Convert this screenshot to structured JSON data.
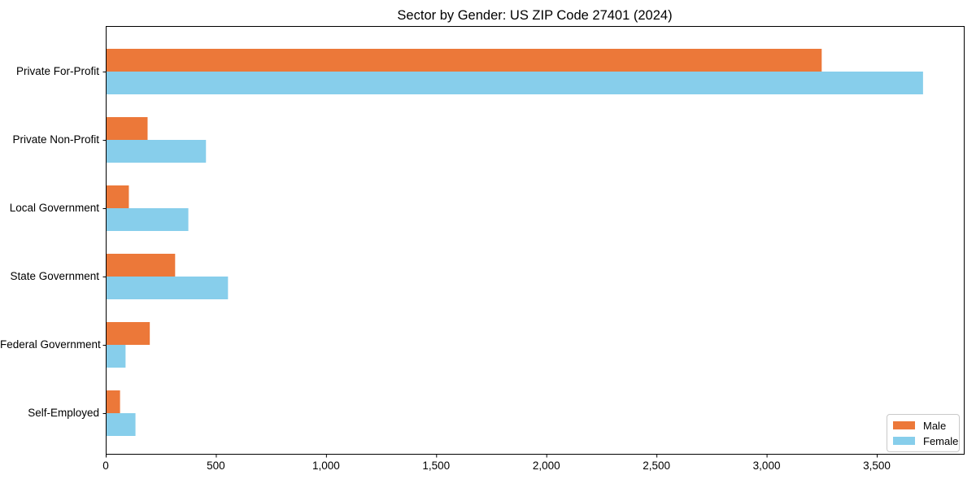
{
  "title": "Sector by Gender: US ZIP Code 27401 (2024)",
  "colors": {
    "male_bar": "#ec7839",
    "female_bar": "#87ceeb",
    "axis": "#000000",
    "legend_border": "#c9c9c9",
    "background": "#ffffff"
  },
  "legend": {
    "position": "lower right",
    "entries": [
      {
        "label": "Male",
        "color": "#ec7839"
      },
      {
        "label": "Female",
        "color": "#87ceeb"
      }
    ]
  },
  "chart_data": {
    "type": "bar",
    "orientation": "horizontal",
    "title": "Sector by Gender: US ZIP Code 27401 (2024)",
    "xlabel": "",
    "ylabel": "",
    "categories": [
      "Private For-Profit",
      "Private Non-Profit",
      "Local Government",
      "State Government",
      "Federal Government",
      "Self-Employed"
    ],
    "series": [
      {
        "name": "Male",
        "color": "#ec7839",
        "values": [
          3250,
          190,
          105,
          315,
          200,
          65
        ]
      },
      {
        "name": "Female",
        "color": "#87ceeb",
        "values": [
          3710,
          455,
          375,
          555,
          90,
          135
        ]
      }
    ],
    "xlim": [
      0,
      3895
    ],
    "xticks": [
      0,
      500,
      1000,
      1500,
      2000,
      2500,
      3000,
      3500
    ],
    "xtick_labels": [
      "0",
      "500",
      "1,000",
      "1,500",
      "2,000",
      "2,500",
      "3,000",
      "3,500"
    ],
    "grid": false,
    "legend_position": "lower right"
  }
}
